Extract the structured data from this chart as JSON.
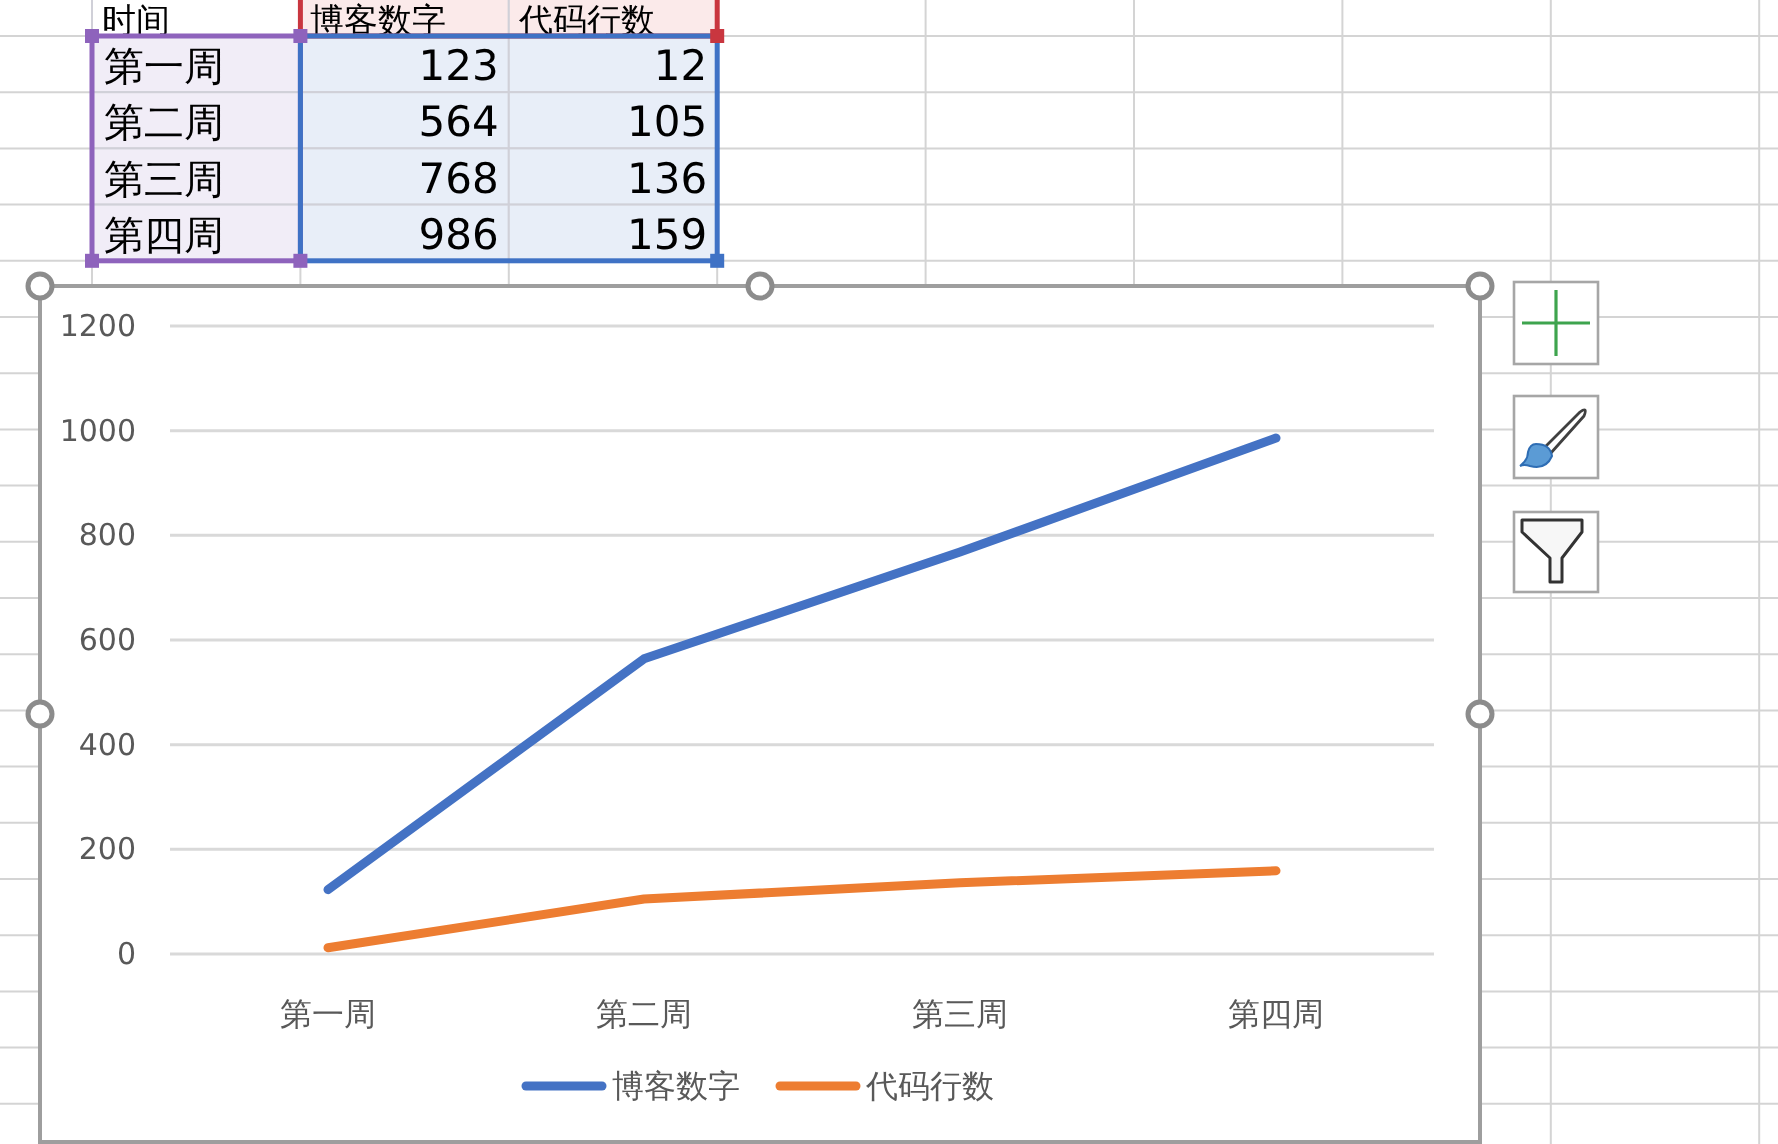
{
  "chart_data": [
    {
      "type": "other",
      "annotations": [
        "时间"
      ],
      "categories": [
        "第一周",
        "第二周",
        "第三周",
        "第四周"
      ],
      "series": [
        {
          "name": "博客数字",
          "values": [
            123,
            564,
            768,
            986
          ]
        },
        {
          "name": "代码行数",
          "values": [
            12,
            105,
            136,
            159
          ]
        }
      ],
      "data_labels": true
    },
    {
      "type": "line",
      "categories": [
        "第一周",
        "第二周",
        "第三周",
        "第四周"
      ],
      "series": [
        {
          "name": "博客数字",
          "color": "#4472c4",
          "values": [
            123,
            564,
            768,
            986
          ]
        },
        {
          "name": "代码行数",
          "color": "#ed7d31",
          "values": [
            12,
            105,
            136,
            159
          ]
        }
      ],
      "ylim": [
        0,
        1200
      ],
      "yticks": [
        0,
        200,
        400,
        600,
        800,
        1000,
        1200
      ],
      "grid": "y",
      "legend": "bottom"
    }
  ]
}
